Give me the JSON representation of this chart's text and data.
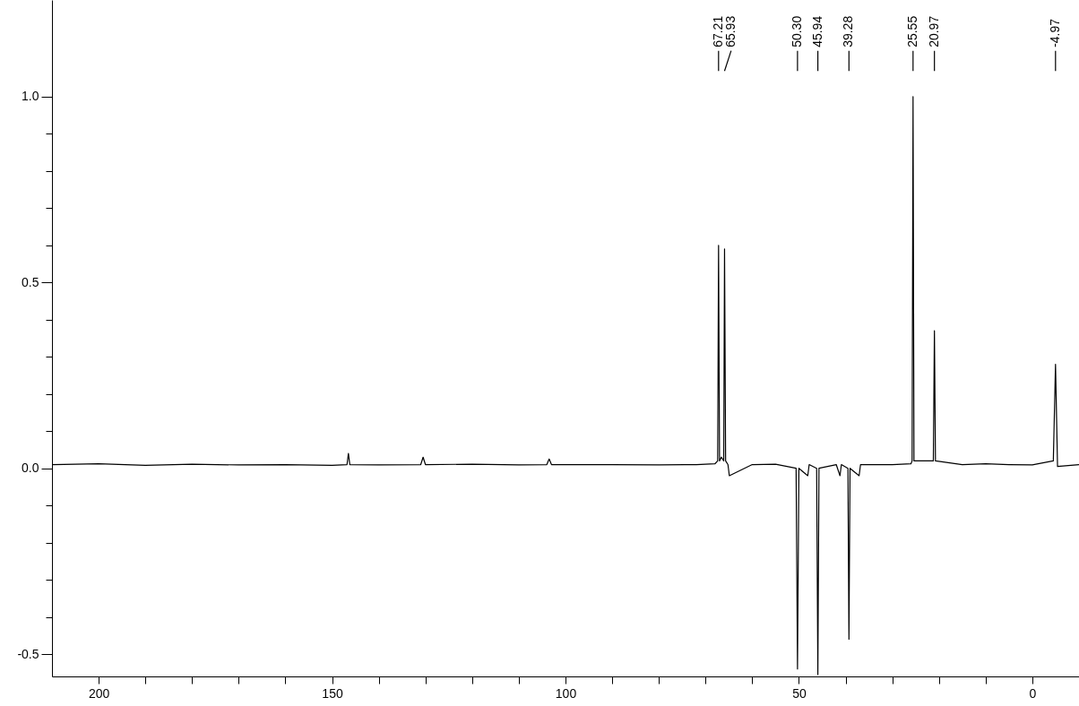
{
  "chart_data": {
    "type": "line",
    "x": [
      210,
      200,
      190,
      180,
      170,
      160,
      150,
      146.8,
      146.5,
      146.2,
      140,
      131,
      130.5,
      130,
      120,
      110,
      104,
      103.5,
      103,
      90,
      80,
      72,
      68,
      67.4,
      67.21,
      67.0,
      66.6,
      66.1,
      65.93,
      65.7,
      65.2,
      64.9,
      60,
      55,
      50.6,
      50.3,
      50.0,
      48.1,
      47.8,
      46.2,
      45.94,
      45.7,
      42,
      41.2,
      40.9,
      39.5,
      39.28,
      39.05,
      37.1,
      36.8,
      30,
      26,
      25.75,
      25.55,
      25.35,
      21.2,
      20.97,
      20.75,
      15,
      10,
      5,
      0,
      -4.5,
      -4.97,
      -5.4,
      -10
    ],
    "series": [
      {
        "color": "#000000",
        "values": [
          0.01,
          0.012,
          0.008,
          0.011,
          0.009,
          0.01,
          0.008,
          0.01,
          0.04,
          0.01,
          0.009,
          0.01,
          0.03,
          0.01,
          0.011,
          0.009,
          0.01,
          0.025,
          0.01,
          0.01,
          0.009,
          0.01,
          0.012,
          0.02,
          0.6,
          0.02,
          0.03,
          0.02,
          0.59,
          0.02,
          0.01,
          -0.02,
          0.01,
          0.011,
          0.0,
          -0.54,
          0.0,
          -0.02,
          0.01,
          0.0,
          -0.555,
          0.0,
          0.01,
          -0.02,
          0.01,
          0.0,
          -0.46,
          0.0,
          -0.02,
          0.01,
          0.01,
          0.012,
          0.02,
          1.0,
          0.02,
          0.02,
          0.37,
          0.02,
          0.01,
          0.012,
          0.01,
          0.009,
          0.02,
          0.28,
          0.005,
          0.01
        ]
      }
    ],
    "xlim": [
      210,
      -10
    ],
    "xticks": [
      {
        "value": 200,
        "label": "200"
      },
      {
        "value": 190,
        "label": null
      },
      {
        "value": 180,
        "label": null
      },
      {
        "value": 170,
        "label": null
      },
      {
        "value": 160,
        "label": null
      },
      {
        "value": 150,
        "label": "150"
      },
      {
        "value": 140,
        "label": null
      },
      {
        "value": 130,
        "label": null
      },
      {
        "value": 120,
        "label": null
      },
      {
        "value": 110,
        "label": null
      },
      {
        "value": 100,
        "label": "100"
      },
      {
        "value": 90,
        "label": null
      },
      {
        "value": 80,
        "label": null
      },
      {
        "value": 70,
        "label": null
      },
      {
        "value": 60,
        "label": null
      },
      {
        "value": 50,
        "label": "50"
      },
      {
        "value": 40,
        "label": null
      },
      {
        "value": 30,
        "label": null
      },
      {
        "value": 20,
        "label": null
      },
      {
        "value": 10,
        "label": null
      },
      {
        "value": 0,
        "label": "0"
      },
      {
        "value": -10,
        "label": null
      }
    ],
    "ylim": [
      -0.56,
      1.26
    ],
    "yticks": [
      {
        "value": -0.5,
        "label": "-0.5"
      },
      {
        "value": -0.4,
        "label": null
      },
      {
        "value": -0.3,
        "label": null
      },
      {
        "value": -0.2,
        "label": null
      },
      {
        "value": -0.1,
        "label": null
      },
      {
        "value": 0,
        "label": "0.0"
      },
      {
        "value": 0.1,
        "label": null
      },
      {
        "value": 0.2,
        "label": null
      },
      {
        "value": 0.3,
        "label": null
      },
      {
        "value": 0.4,
        "label": null
      },
      {
        "value": 0.5,
        "label": "0.5"
      },
      {
        "value": 0.6,
        "label": null
      },
      {
        "value": 0.7,
        "label": null
      },
      {
        "value": 0.8,
        "label": null
      },
      {
        "value": 0.9,
        "label": null
      },
      {
        "value": 1,
        "label": "1.0"
      }
    ],
    "annotations": [
      {
        "text": "67.21",
        "x": 67.21
      },
      {
        "text": "65.93",
        "x": 65.93
      },
      {
        "text": "50.30",
        "x": 50.3
      },
      {
        "text": "45.94",
        "x": 45.94
      },
      {
        "text": "39.28",
        "x": 39.28
      },
      {
        "text": "25.55",
        "x": 25.55
      },
      {
        "text": "20.97",
        "x": 20.97
      },
      {
        "text": "-4.97",
        "x": -4.97
      }
    ]
  }
}
